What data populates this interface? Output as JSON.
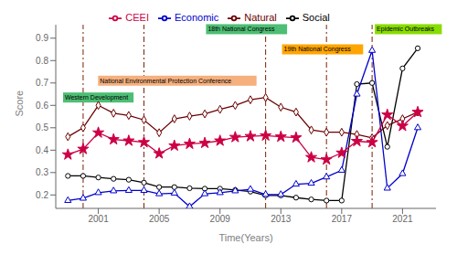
{
  "chart_data": {
    "type": "line",
    "x_label": "Time(Years)",
    "y_label": "Score",
    "x": [
      1999,
      2000,
      2001,
      2002,
      2003,
      2004,
      2005,
      2006,
      2007,
      2008,
      2009,
      2010,
      2011,
      2012,
      2013,
      2014,
      2015,
      2016,
      2017,
      2018,
      2019,
      2020,
      2021,
      2022
    ],
    "series": [
      {
        "name": "Social",
        "color": "#000000",
        "marker": "circle",
        "values": [
          0.285,
          0.285,
          0.278,
          0.272,
          0.268,
          0.255,
          0.235,
          0.235,
          0.23,
          0.228,
          0.228,
          0.222,
          0.215,
          0.198,
          0.198,
          0.188,
          0.18,
          0.175,
          0.175,
          0.695,
          0.7,
          0.415,
          0.765,
          0.855
        ]
      },
      {
        "name": "Economic",
        "color": "#0000cc",
        "marker": "triangle",
        "values": [
          0.175,
          0.185,
          0.21,
          0.218,
          0.22,
          0.22,
          0.205,
          0.208,
          0.148,
          0.205,
          0.21,
          0.218,
          0.225,
          0.202,
          0.202,
          0.248,
          0.252,
          0.28,
          0.31,
          0.65,
          0.845,
          0.23,
          0.295,
          0.5
        ]
      },
      {
        "name": "Natural",
        "color": "#6b0000",
        "marker": "diamond",
        "values": [
          0.46,
          0.5,
          0.6,
          0.565,
          0.555,
          0.535,
          0.478,
          0.54,
          0.552,
          0.562,
          0.582,
          0.6,
          0.625,
          0.635,
          0.592,
          0.57,
          0.49,
          0.48,
          0.48,
          0.47,
          0.455,
          0.51,
          0.54,
          0.57
        ]
      },
      {
        "name": "CEEI",
        "color": "#cc0044",
        "marker": "star",
        "values": [
          0.38,
          0.405,
          0.478,
          0.448,
          0.442,
          0.435,
          0.385,
          0.42,
          0.428,
          0.432,
          0.442,
          0.458,
          0.462,
          0.465,
          0.46,
          0.456,
          0.368,
          0.358,
          0.388,
          0.44,
          0.435,
          0.558,
          0.508,
          0.57
        ]
      }
    ],
    "xlim": [
      1998.2,
      2023.2
    ],
    "xticks": [
      2001,
      2005,
      2009,
      2013,
      2017,
      2021
    ],
    "ylim": [
      0.14,
      0.96
    ],
    "yticks": [
      0.2,
      0.3,
      0.4,
      0.5,
      0.6,
      0.7,
      0.8,
      0.9
    ],
    "vlines": [
      2000,
      2004,
      2012,
      2016,
      2019
    ],
    "annotations": [
      {
        "text": "Western Development",
        "x": 1998.8,
        "y": 0.625,
        "color": "#4dbe74"
      },
      {
        "text": "National Environmental Protection Conference",
        "x": 2001.1,
        "y": 0.7,
        "color": "#f5b07e"
      },
      {
        "text": "18th National Congress",
        "x": 2008.2,
        "y": 0.93,
        "color": "#4dbe74"
      },
      {
        "text": "19th National Congress",
        "x": 2013.2,
        "y": 0.84,
        "color": "#ffa500"
      },
      {
        "text": "Epidemic Outbreaks",
        "x": 2019.3,
        "y": 0.93,
        "color": "#88dd00"
      }
    ],
    "legend": "top",
    "grid": false
  }
}
